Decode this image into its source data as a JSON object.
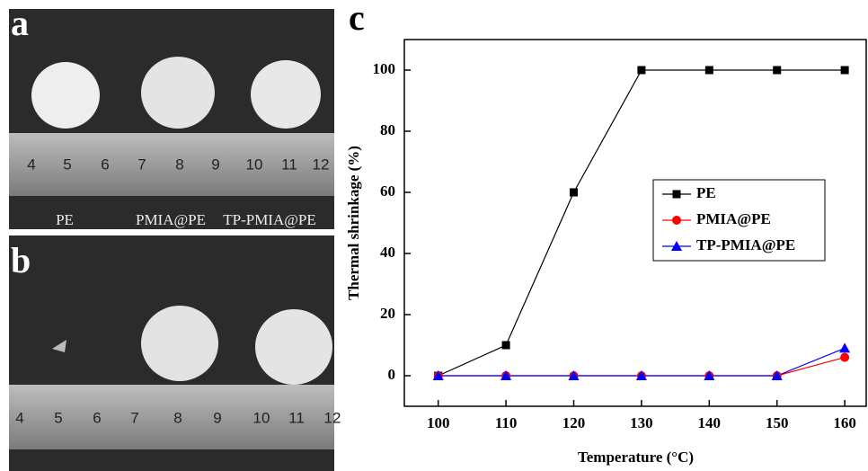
{
  "panels": {
    "a": {
      "label": "a",
      "ruler": [
        4,
        5,
        6,
        7,
        8,
        9,
        10,
        11,
        12
      ],
      "captions": [
        "PE",
        "PMIA@PE",
        "TP-PMIA@PE"
      ]
    },
    "b": {
      "label": "b",
      "ruler": [
        4,
        5,
        6,
        7,
        8,
        9,
        10,
        11,
        12
      ]
    }
  },
  "chart_data": {
    "type": "line",
    "panel_label": "c",
    "x_label": "Temperature (°C)",
    "y_label": "Thermal shrinkage (%)",
    "x": [
      100,
      110,
      120,
      130,
      140,
      150,
      160
    ],
    "series": [
      {
        "name": "PE",
        "color": "#000000",
        "marker": "square",
        "values": [
          0,
          10,
          60,
          100,
          100,
          100,
          100
        ]
      },
      {
        "name": "PMIA@PE",
        "color": "#ff0000",
        "marker": "circle",
        "values": [
          0,
          0,
          0,
          0,
          0,
          0,
          6
        ]
      },
      {
        "name": "TP-PMIA@PE",
        "color": "#0000ff",
        "marker": "triangle",
        "values": [
          0,
          0,
          0,
          0,
          0,
          0,
          9
        ]
      }
    ],
    "xlim": [
      95,
      163.3
    ],
    "xticks": [
      100,
      110,
      120,
      130,
      140,
      150,
      160
    ],
    "ylim": [
      -10,
      110
    ],
    "yticks": [
      0,
      20,
      40,
      60,
      80,
      100
    ],
    "legend": "right"
  }
}
